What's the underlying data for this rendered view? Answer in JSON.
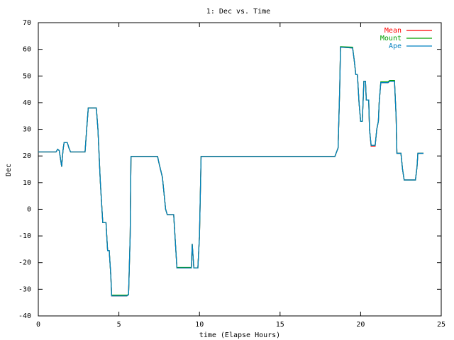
{
  "chart_data": {
    "type": "line",
    "title": "1: Dec vs. Time",
    "xlabel": "time (Elapse Hours)",
    "ylabel": "Dec",
    "xlim": [
      0,
      25
    ],
    "xticks": [
      0,
      5,
      10,
      15,
      20,
      25
    ],
    "ylim": [
      -40,
      70
    ],
    "yticks": [
      -40,
      -30,
      -20,
      -10,
      0,
      10,
      20,
      30,
      40,
      50,
      60,
      70
    ],
    "legend": "top-right",
    "x": [
      0,
      1.1,
      1.2,
      1.3,
      1.4,
      1.45,
      1.5,
      1.55,
      1.6,
      1.8,
      1.9,
      2.0,
      2.9,
      3.0,
      3.1,
      3.6,
      3.7,
      3.85,
      4.0,
      4.2,
      4.3,
      4.4,
      4.5,
      4.55,
      5.5,
      5.6,
      5.7,
      5.75,
      7.4,
      7.5,
      7.7,
      7.9,
      8.0,
      8.4,
      8.5,
      8.6,
      9.5,
      9.55,
      9.65,
      9.9,
      10.0,
      10.1,
      18.4,
      18.6,
      18.7,
      18.75,
      19.5,
      19.6,
      19.7,
      19.8,
      19.9,
      20.0,
      20.1,
      20.15,
      20.2,
      20.3,
      20.35,
      20.5,
      20.55,
      20.65,
      20.9,
      21.0,
      21.1,
      21.15,
      21.25,
      21.7,
      21.8,
      22.1,
      22.2,
      22.25,
      22.5,
      22.6,
      22.7,
      23.4,
      23.5,
      23.55,
      23.9
    ],
    "series": [
      {
        "name": "Mean",
        "color": "#ff0000",
        "values": [
          21.5,
          21.5,
          22.5,
          22,
          18,
          16,
          20,
          23,
          25,
          25,
          23,
          21.5,
          21.5,
          30,
          38,
          38,
          30,
          10,
          -5,
          -5,
          -15.5,
          -15.5,
          -25,
          -32.5,
          -32.5,
          -32,
          -10,
          19.8,
          19.8,
          17,
          12,
          0,
          -2,
          -2,
          -12,
          -22,
          -22,
          -13,
          -22,
          -22,
          -10,
          19.8,
          19.8,
          23,
          45,
          60.8,
          60.5,
          56,
          50.5,
          50.5,
          40,
          33,
          33,
          40,
          48,
          48,
          41,
          41,
          30,
          23.7,
          23.7,
          30,
          33,
          40,
          47.5,
          47.5,
          48,
          48,
          35,
          21,
          21,
          15,
          11,
          11,
          16,
          21,
          21
        ]
      },
      {
        "name": "Mount",
        "color": "#00a000",
        "values": [
          21.5,
          21.5,
          22.5,
          22,
          18,
          16,
          20,
          23,
          25,
          25,
          23,
          21.5,
          21.5,
          30,
          38,
          38,
          30,
          10,
          -5,
          -5,
          -15.5,
          -15.5,
          -25,
          -32.2,
          -32.2,
          -32,
          -10,
          19.8,
          19.8,
          17,
          12,
          0,
          -2,
          -2,
          -12,
          -21.8,
          -21.8,
          -13,
          -22,
          -22,
          -10,
          19.8,
          19.8,
          23,
          45,
          61,
          60.8,
          56,
          50.5,
          50.5,
          40,
          33,
          33,
          40,
          48,
          48,
          41,
          41,
          30,
          24,
          24,
          30,
          33,
          40,
          47.8,
          47.8,
          48.3,
          48.3,
          35,
          21,
          21,
          15,
          11,
          11,
          16,
          21,
          21
        ]
      },
      {
        "name": "Ape",
        "color": "#0080c0",
        "values": [
          21.5,
          21.5,
          22.5,
          22,
          18,
          16,
          20,
          23,
          25,
          25,
          23,
          21.5,
          21.5,
          30,
          38,
          38,
          30,
          10,
          -5,
          -5,
          -15.5,
          -15.5,
          -25,
          -32.5,
          -32.5,
          -32,
          -10,
          19.8,
          19.8,
          17,
          12,
          0,
          -2,
          -2,
          -12,
          -22,
          -22,
          -13,
          -22,
          -22,
          -10,
          19.8,
          19.8,
          23,
          45,
          60.8,
          60.5,
          56,
          50.5,
          50.5,
          40,
          33,
          33,
          40,
          48,
          48,
          41,
          41,
          30,
          24,
          24,
          30,
          33,
          40,
          47.5,
          47.5,
          48,
          48,
          35,
          21,
          21,
          15,
          11,
          11,
          16,
          21,
          21
        ]
      }
    ]
  }
}
